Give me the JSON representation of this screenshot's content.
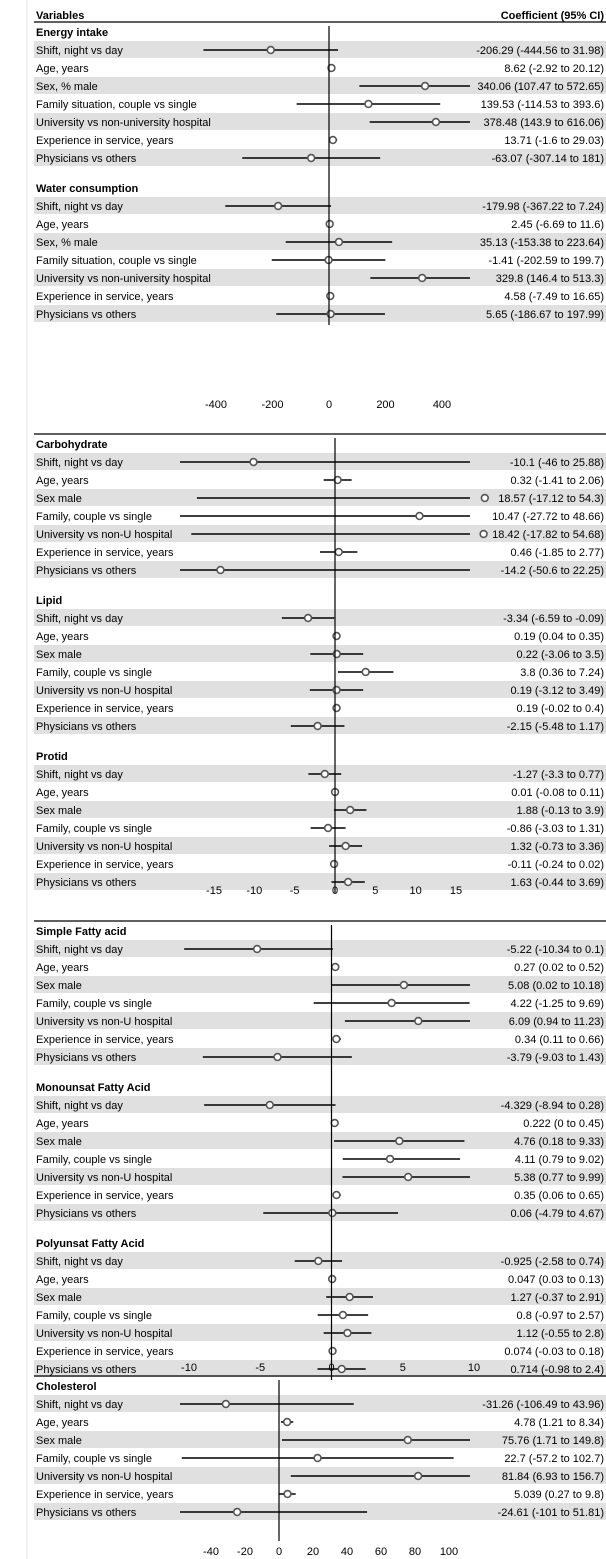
{
  "header": {
    "left": "Variables",
    "right": "Coefficient (95% CI)"
  },
  "colors": {
    "stripe": "#e0e0e0",
    "line": "#000000",
    "marker_fill": "#ffffff",
    "marker_stroke": "#555555"
  },
  "chart_data": [
    {
      "type": "forest",
      "ticks": [
        -400,
        -200,
        0,
        200,
        400
      ],
      "xlim": [
        -560,
        760
      ],
      "reference_line": 0,
      "sections": [
        {
          "title": "Energy intake",
          "rows": [
            {
              "label": "Shift, night vs day",
              "est": -206.29,
              "lo": -444.56,
              "hi": 31.98,
              "text": "-206.29 (-444.56 to 31.98)"
            },
            {
              "label": "Age, years",
              "est": 8.62,
              "lo": -2.92,
              "hi": 20.12,
              "text": "8.62 (-2.92 to 20.12)"
            },
            {
              "label": "Sex, % male",
              "est": 340.06,
              "lo": 107.47,
              "hi": 572.65,
              "text": "340.06 (107.47 to 572.65)"
            },
            {
              "label": "Family situation, couple vs single",
              "est": 139.53,
              "lo": -114.53,
              "hi": 393.6,
              "text": "139.53 (-114.53 to 393.6)"
            },
            {
              "label": "University vs non-university hospital",
              "est": 378.48,
              "lo": 143.9,
              "hi": 616.06,
              "text": "378.48 (143.9 to 616.06)"
            },
            {
              "label": "Experience in service, years",
              "est": 13.71,
              "lo": -1.6,
              "hi": 29.03,
              "text": "13.71 (-1.6 to 29.03)"
            },
            {
              "label": "Physicians vs others",
              "est": -63.07,
              "lo": -307.14,
              "hi": 181,
              "text": "-63.07 (-307.14 to 181)"
            }
          ]
        },
        {
          "title": "Water consumption",
          "rows": [
            {
              "label": "Shift, night vs day",
              "est": -179.98,
              "lo": -367.22,
              "hi": 7.24,
              "text": "-179.98 (-367.22 to 7.24)"
            },
            {
              "label": "Age, years",
              "est": 2.45,
              "lo": -6.69,
              "hi": 11.6,
              "text": "2.45 (-6.69 to 11.6)"
            },
            {
              "label": "Sex, % male",
              "est": 35.13,
              "lo": -153.38,
              "hi": 223.64,
              "text": "35.13 (-153.38 to 223.64)"
            },
            {
              "label": "Family situation, couple vs single",
              "est": -1.41,
              "lo": -202.59,
              "hi": 199.7,
              "text": "-1.41 (-202.59 to 199.7)"
            },
            {
              "label": "University vs non-university hospital",
              "est": 329.8,
              "lo": 146.4,
              "hi": 513.3,
              "text": "329.8 (146.4 to 513.3)"
            },
            {
              "label": "Experience in service, years",
              "est": 4.58,
              "lo": -7.49,
              "hi": 16.65,
              "text": "4.58 (-7.49 to 16.65)"
            },
            {
              "label": "Physicians vs others",
              "est": 5.65,
              "lo": -186.67,
              "hi": 197.99,
              "text": "5.65 (-186.67 to 197.99)"
            }
          ]
        }
      ]
    },
    {
      "type": "forest",
      "ticks": [
        -15,
        -10,
        -5,
        0,
        5,
        10,
        15
      ],
      "xlim": [
        -21.5,
        16.5
      ],
      "reference_line": 0,
      "sections": [
        {
          "title": "Carbohydrate",
          "rows": [
            {
              "label": "Shift, night vs day",
              "est": -10.1,
              "lo": -46,
              "hi": 25.88,
              "text": "-10.1 (-46 to 25.88)"
            },
            {
              "label": "Age, years",
              "est": 0.32,
              "lo": -1.41,
              "hi": 2.06,
              "text": "0.32 (-1.41 to 2.06)"
            },
            {
              "label": "Sex male",
              "est": 18.57,
              "lo": -17.12,
              "hi": 54.3,
              "text": "18.57 (-17.12 to 54.3)"
            },
            {
              "label": "Family, couple vs single",
              "est": 10.47,
              "lo": -27.72,
              "hi": 48.66,
              "text": "10.47 (-27.72 to 48.66)"
            },
            {
              "label": "University vs non-U hospital",
              "est": 18.42,
              "lo": -17.82,
              "hi": 54.68,
              "text": "18.42 (-17.82 to 54.68)"
            },
            {
              "label": "Experience in service, years",
              "est": 0.46,
              "lo": -1.85,
              "hi": 2.77,
              "text": "0.46 (-1.85 to 2.77)"
            },
            {
              "label": "Physicians vs others",
              "est": -14.2,
              "lo": -50.6,
              "hi": 22.25,
              "text": "-14.2 (-50.6 to 22.25)"
            }
          ]
        },
        {
          "title": "Lipid",
          "rows": [
            {
              "label": "Shift, night vs day",
              "est": -3.34,
              "lo": -6.59,
              "hi": -0.09,
              "text": "-3.34 (-6.59 to -0.09)"
            },
            {
              "label": "Age, years",
              "est": 0.19,
              "lo": 0.04,
              "hi": 0.35,
              "text": "0.19 (0.04 to 0.35)"
            },
            {
              "label": "Sex male",
              "est": 0.22,
              "lo": -3.06,
              "hi": 3.5,
              "text": "0.22 (-3.06 to 3.5)"
            },
            {
              "label": "Family, couple vs single",
              "est": 3.8,
              "lo": 0.36,
              "hi": 7.24,
              "text": "3.8 (0.36 to 7.24)"
            },
            {
              "label": "University vs non-U hospital",
              "est": 0.19,
              "lo": -3.12,
              "hi": 3.49,
              "text": "0.19 (-3.12 to 3.49)"
            },
            {
              "label": "Experience in service, years",
              "est": 0.19,
              "lo": -0.02,
              "hi": 0.4,
              "text": "0.19 (-0.02 to 0.4)"
            },
            {
              "label": "Physicians vs others",
              "est": -2.15,
              "lo": -5.48,
              "hi": 1.17,
              "text": "-2.15 (-5.48 to 1.17)"
            }
          ]
        },
        {
          "title": "Protid",
          "rows": [
            {
              "label": "Shift, night vs day",
              "est": -1.27,
              "lo": -3.3,
              "hi": 0.77,
              "text": "-1.27 (-3.3 to 0.77)"
            },
            {
              "label": "Age, years",
              "est": 0.01,
              "lo": -0.08,
              "hi": 0.11,
              "text": "0.01 (-0.08 to 0.11)"
            },
            {
              "label": "Sex male",
              "est": 1.88,
              "lo": -0.13,
              "hi": 3.9,
              "text": "1.88 (-0.13 to 3.9)"
            },
            {
              "label": "Family, couple vs single",
              "est": -0.86,
              "lo": -3.03,
              "hi": 1.31,
              "text": "-0.86 (-3.03 to 1.31)"
            },
            {
              "label": "University vs non-U hospital",
              "est": 1.32,
              "lo": -0.73,
              "hi": 3.36,
              "text": "1.32 (-0.73 to 3.36)"
            },
            {
              "label": "Experience in service, years",
              "est": -0.11,
              "lo": -0.24,
              "hi": 0.02,
              "text": "-0.11 (-0.24 to 0.02)"
            },
            {
              "label": "Physicians vs others",
              "est": 1.63,
              "lo": -0.44,
              "hi": 3.69,
              "text": "1.63 (-0.44 to 3.69)"
            }
          ]
        }
      ]
    },
    {
      "type": "forest",
      "ticks": [
        -10,
        -5,
        0,
        5,
        10
      ],
      "xlim": [
        -14.6,
        10.6
      ],
      "reference_line": 0,
      "sections": [
        {
          "title": "Simple Fatty acid",
          "rows": [
            {
              "label": "Shift, night vs day",
              "est": -5.22,
              "lo": -10.34,
              "hi": 0.1,
              "text": "-5.22 (-10.34 to 0.1)"
            },
            {
              "label": "Age, years",
              "est": 0.27,
              "lo": 0.02,
              "hi": 0.52,
              "text": "0.27 (0.02 to 0.52)"
            },
            {
              "label": "Sex male",
              "est": 5.08,
              "lo": 0.02,
              "hi": 10.18,
              "text": "5.08 (0.02 to 10.18)"
            },
            {
              "label": "Family, couple vs single",
              "est": 4.22,
              "lo": -1.25,
              "hi": 9.69,
              "text": "4.22 (-1.25 to 9.69)"
            },
            {
              "label": "University vs non-U hospital",
              "est": 6.09,
              "lo": 0.94,
              "hi": 11.23,
              "text": "6.09 (0.94 to 11.23)"
            },
            {
              "label": "Experience in service, years",
              "est": 0.34,
              "lo": 0.11,
              "hi": 0.66,
              "text": "0.34 (0.11 to 0.66)"
            },
            {
              "label": "Physicians vs others",
              "est": -3.79,
              "lo": -9.03,
              "hi": 1.43,
              "text": "-3.79 (-9.03 to 1.43)"
            }
          ]
        },
        {
          "title": "Monounsat Fatty Acid",
          "rows": [
            {
              "label": "Shift, night vs day",
              "est": -4.329,
              "lo": -8.94,
              "hi": 0.28,
              "text": "-4.329 (-8.94 to 0.28)"
            },
            {
              "label": "Age, years",
              "est": 0.222,
              "lo": 0,
              "hi": 0.45,
              "text": "0.222 (0 to 0.45)"
            },
            {
              "label": "Sex male",
              "est": 4.76,
              "lo": 0.18,
              "hi": 9.33,
              "text": "4.76 (0.18 to 9.33)"
            },
            {
              "label": "Family, couple vs single",
              "est": 4.11,
              "lo": 0.79,
              "hi": 9.02,
              "text": "4.11 (0.79 to 9.02)"
            },
            {
              "label": "University vs non-U hospital",
              "est": 5.38,
              "lo": 0.77,
              "hi": 9.99,
              "text": "5.38 (0.77 to 9.99)"
            },
            {
              "label": "Experience in service, years",
              "est": 0.35,
              "lo": 0.06,
              "hi": 0.65,
              "text": "0.35 (0.06 to 0.65)"
            },
            {
              "label": "Physicians vs others",
              "est": 0.06,
              "lo": -4.79,
              "hi": 4.67,
              "text": "0.06 (-4.79 to 4.67)"
            }
          ]
        },
        {
          "title": "Polyunsat Fatty Acid",
          "rows": [
            {
              "label": "Shift, night vs day",
              "est": -0.925,
              "lo": -2.58,
              "hi": 0.74,
              "text": "-0.925 (-2.58 to 0.74)"
            },
            {
              "label": "Age, years",
              "est": 0.047,
              "lo": 0.03,
              "hi": 0.13,
              "text": "0.047 (0.03 to 0.13)"
            },
            {
              "label": "Sex male",
              "est": 1.27,
              "lo": -0.37,
              "hi": 2.91,
              "text": "1.27 (-0.37 to 2.91)"
            },
            {
              "label": "Family, couple vs single",
              "est": 0.8,
              "lo": -0.97,
              "hi": 2.57,
              "text": "0.8 (-0.97 to 2.57)"
            },
            {
              "label": "University vs non-U hospital",
              "est": 1.12,
              "lo": -0.55,
              "hi": 2.8,
              "text": "1.12 (-0.55 to 2.8)"
            },
            {
              "label": "Experience in service, years",
              "est": 0.074,
              "lo": -0.03,
              "hi": 0.18,
              "text": "0.074 (-0.03 to 0.18)"
            },
            {
              "label": "Physicians vs others",
              "est": 0.714,
              "lo": -0.98,
              "hi": 2.4,
              "text": "0.714 (-0.98 to 2.4)"
            }
          ]
        }
      ]
    },
    {
      "type": "forest",
      "ticks": [
        -40,
        -20,
        0,
        20,
        40,
        60,
        80,
        100
      ],
      "xlim": [
        -57.5,
        109
      ],
      "reference_line": 0,
      "sections": [
        {
          "title": "Cholesterol",
          "rows": [
            {
              "label": "Shift, night vs day",
              "est": -31.26,
              "lo": -106.49,
              "hi": 43.96,
              "text": "-31.26 (-106.49 to 43.96)"
            },
            {
              "label": "Age, years",
              "est": 4.78,
              "lo": 1.21,
              "hi": 8.34,
              "text": "4.78 (1.21 to 8.34)"
            },
            {
              "label": "Sex male",
              "est": 75.76,
              "lo": 1.71,
              "hi": 149.8,
              "text": "75.76 (1.71 to 149.8)"
            },
            {
              "label": "Family, couple vs single",
              "est": 22.7,
              "lo": -57.2,
              "hi": 102.7,
              "text": "22.7 (-57.2 to 102.7)"
            },
            {
              "label": "University vs non-U hospital",
              "est": 81.84,
              "lo": 6.93,
              "hi": 156.7,
              "text": "81.84 (6.93 to 156.7)"
            },
            {
              "label": "Experience in service, years",
              "est": 5.039,
              "lo": 0.27,
              "hi": 9.8,
              "text": "5.039 (0.27 to 9.8)"
            },
            {
              "label": "Physicians vs others",
              "est": -24.61,
              "lo": -101,
              "hi": 51.81,
              "text": "-24.61 (-101 to 51.81)"
            }
          ]
        }
      ]
    }
  ]
}
